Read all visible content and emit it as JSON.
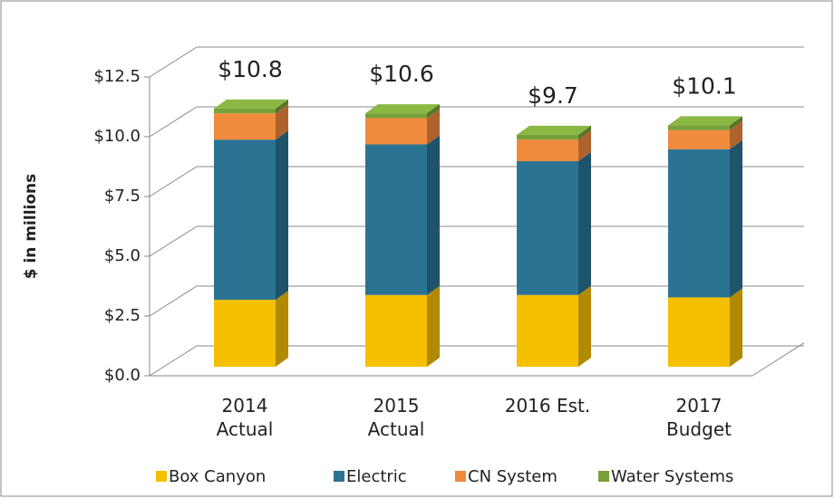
{
  "chart_data": {
    "type": "bar3d_stacked",
    "y_label": "$ in millions",
    "categories": [
      "2014\nActual",
      "2015\nActual",
      "2016 Est.",
      "2017\nBudget"
    ],
    "series": [
      {
        "name": "Box Canyon",
        "color": "#f5c000",
        "values": [
          2.8,
          3.0,
          3.0,
          2.9
        ]
      },
      {
        "name": "Electric",
        "color": "#2b7393",
        "values": [
          6.7,
          6.3,
          5.6,
          6.2
        ]
      },
      {
        "name": "CN System",
        "color": "#f08a3c",
        "values": [
          1.1,
          1.1,
          0.9,
          0.8
        ]
      },
      {
        "name": "Water Systems",
        "color": "#77a03a",
        "values": [
          0.2,
          0.2,
          0.2,
          0.2
        ]
      }
    ],
    "totals": [
      10.8,
      10.6,
      9.7,
      10.1
    ],
    "total_labels": [
      "$10.8",
      "$10.6",
      "$9.7",
      "$10.1"
    ],
    "ylim": [
      0,
      12.5
    ],
    "yticks": [
      {
        "value": 0,
        "label": "$0.0"
      },
      {
        "value": 2.5,
        "label": "$2.5"
      },
      {
        "value": 5,
        "label": "$5.0"
      },
      {
        "value": 7.5,
        "label": "$7.5"
      },
      {
        "value": 10,
        "label": "$10.0"
      },
      {
        "value": 12.5,
        "label": "$12.5"
      }
    ],
    "grid": true,
    "legend": "bottom"
  }
}
